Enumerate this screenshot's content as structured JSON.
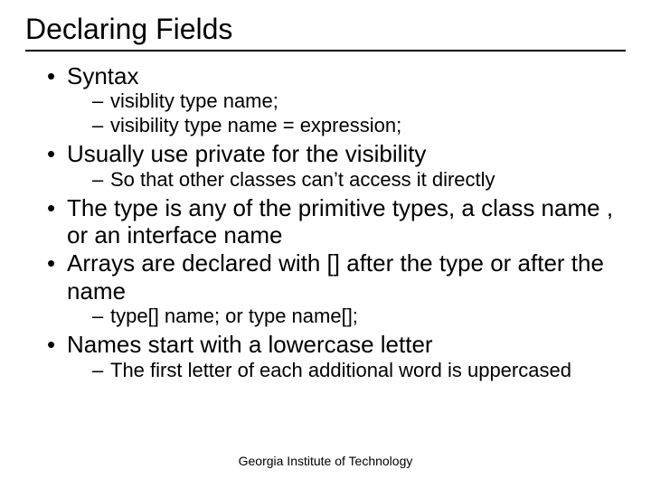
{
  "title": "Declaring Fields",
  "bullets": [
    {
      "text": "Syntax",
      "sub": [
        "visiblity type name;",
        "visibility type name = expression;"
      ]
    },
    {
      "text": "Usually use private for the visibility",
      "sub": [
        "So that other classes can’t access it directly"
      ]
    },
    {
      "text": "The type is any of the primitive types, a class name , or an interface name",
      "sub": []
    },
    {
      "text": "Arrays are declared with [] after the type or after the name",
      "sub": [
        "type[] name; or type name[];"
      ]
    },
    {
      "text": "Names start with a lowercase letter",
      "sub": [
        "The first letter of each additional word is uppercased"
      ]
    }
  ],
  "footer": "Georgia Institute of Technology",
  "colors": {
    "background": "#ffffff",
    "text": "#000000",
    "rule": "#000000"
  },
  "typography": {
    "font_family": "Arial",
    "title_fontsize_pt": 32,
    "body_fontsize_pt": 26,
    "sub_fontsize_pt": 22,
    "footer_fontsize_pt": 14
  }
}
